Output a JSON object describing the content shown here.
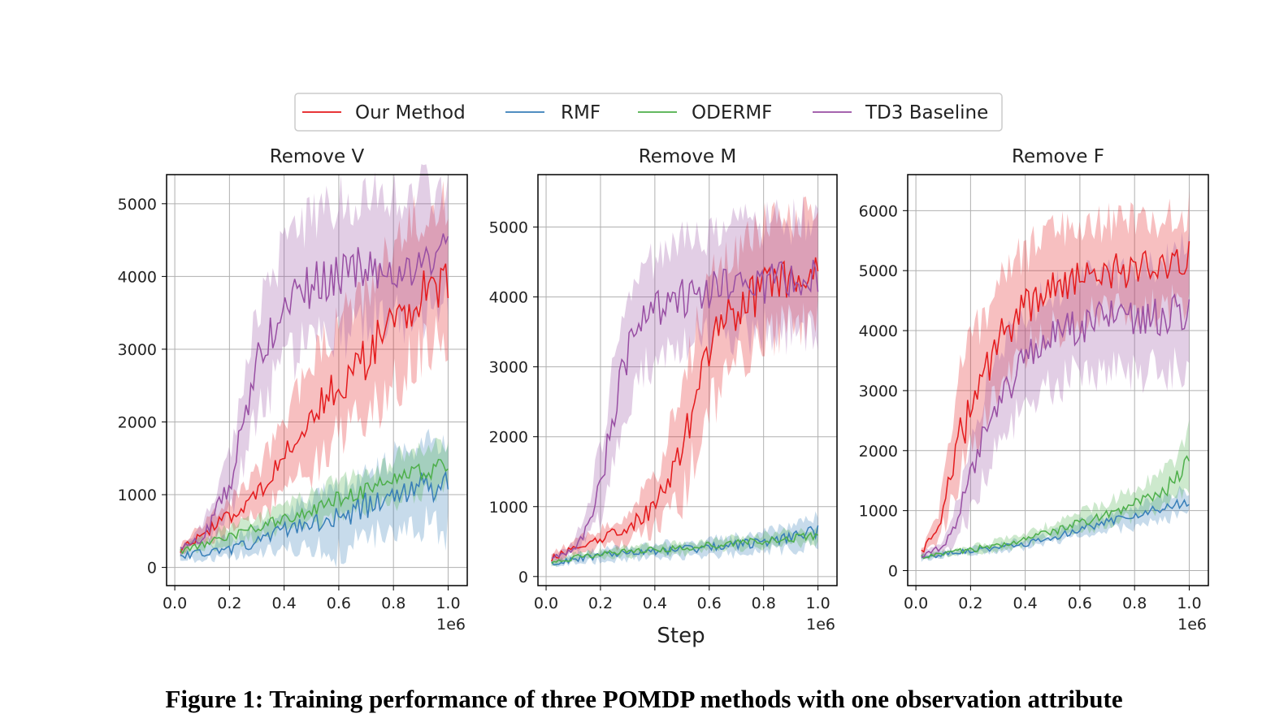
{
  "legend": [
    {
      "label": "Our Method",
      "color": "#e41a1c"
    },
    {
      "label": "RMF",
      "color": "#377eb8"
    },
    {
      "label": "ODERMF",
      "color": "#4daf4a"
    },
    {
      "label": "TD3 Baseline",
      "color": "#984ea3"
    }
  ],
  "shared_xlabel": "Step",
  "x_offset_label": "1e6",
  "caption": "Figure 1: Training performance of three POMDP methods with one observation attribute",
  "chart_data": [
    {
      "type": "line",
      "title": "Remove V",
      "xlim": [
        0.0,
        1.0
      ],
      "ylim": [
        -250,
        5400
      ],
      "xticks": [
        "0.0",
        "0.2",
        "0.4",
        "0.6",
        "0.8",
        "1.0"
      ],
      "yticks": [
        0,
        1000,
        2000,
        3000,
        4000,
        5000
      ],
      "grid": true,
      "series": [
        {
          "name": "Our Method",
          "color": "#e41a1c",
          "x": [
            0.02,
            0.1,
            0.2,
            0.3,
            0.4,
            0.5,
            0.6,
            0.7,
            0.8,
            0.9,
            1.0
          ],
          "y": [
            250,
            450,
            700,
            1000,
            1500,
            2100,
            2500,
            2900,
            3300,
            3800,
            4000
          ],
          "lo": [
            200,
            350,
            500,
            700,
            1000,
            1400,
            1800,
            2100,
            2500,
            3000,
            3200
          ],
          "hi": [
            320,
            600,
            900,
            1300,
            2000,
            2800,
            3300,
            3800,
            4300,
            4900,
            5100
          ]
        },
        {
          "name": "RMF",
          "color": "#377eb8",
          "x": [
            0.02,
            0.1,
            0.2,
            0.3,
            0.4,
            0.5,
            0.6,
            0.7,
            0.8,
            0.9,
            1.0
          ],
          "y": [
            150,
            200,
            250,
            350,
            500,
            600,
            700,
            850,
            1000,
            1100,
            1150
          ],
          "lo": [
            100,
            120,
            150,
            200,
            250,
            300,
            200,
            400,
            500,
            600,
            500
          ],
          "hi": [
            200,
            300,
            400,
            550,
            750,
            900,
            1100,
            1300,
            1500,
            1700,
            1800
          ]
        },
        {
          "name": "ODERMF",
          "color": "#4daf4a",
          "x": [
            0.02,
            0.1,
            0.2,
            0.3,
            0.4,
            0.5,
            0.6,
            0.7,
            0.8,
            0.9,
            1.0
          ],
          "y": [
            220,
            320,
            420,
            550,
            650,
            800,
            950,
            1050,
            1200,
            1300,
            1400
          ],
          "lo": [
            170,
            250,
            320,
            420,
            500,
            600,
            700,
            800,
            900,
            1000,
            1100
          ],
          "hi": [
            270,
            400,
            550,
            700,
            850,
            1000,
            1200,
            1300,
            1500,
            1600,
            1700
          ]
        },
        {
          "name": "TD3 Baseline",
          "color": "#984ea3",
          "x": [
            0.02,
            0.1,
            0.2,
            0.25,
            0.3,
            0.4,
            0.5,
            0.6,
            0.7,
            0.8,
            0.9,
            1.0
          ],
          "y": [
            250,
            400,
            1100,
            2000,
            2800,
            3600,
            3900,
            4000,
            4100,
            4150,
            4200,
            4300
          ],
          "lo": [
            200,
            300,
            700,
            1400,
            2100,
            2800,
            3100,
            3200,
            3400,
            3400,
            3500,
            3600
          ],
          "hi": [
            300,
            550,
            1500,
            2600,
            3500,
            4400,
            4800,
            5000,
            5100,
            5100,
            5200,
            5200
          ]
        }
      ]
    },
    {
      "type": "line",
      "title": "Remove M",
      "xlim": [
        0.0,
        1.0
      ],
      "ylim": [
        -130,
        5750
      ],
      "xticks": [
        "0.0",
        "0.2",
        "0.4",
        "0.6",
        "0.8",
        "1.0"
      ],
      "yticks": [
        0,
        1000,
        2000,
        3000,
        4000,
        5000
      ],
      "grid": true,
      "series": [
        {
          "name": "Our Method",
          "color": "#e41a1c",
          "x": [
            0.02,
            0.1,
            0.2,
            0.3,
            0.4,
            0.5,
            0.55,
            0.6,
            0.7,
            0.8,
            0.9,
            1.0
          ],
          "y": [
            250,
            400,
            550,
            700,
            1000,
            1800,
            2600,
            3300,
            3800,
            4100,
            4300,
            4400
          ],
          "lo": [
            200,
            320,
            420,
            500,
            700,
            1100,
            1700,
            2400,
            3000,
            3400,
            3600,
            3700
          ],
          "hi": [
            320,
            480,
            700,
            900,
            1400,
            2600,
            3500,
            4200,
            4700,
            5000,
            5100,
            5200
          ]
        },
        {
          "name": "RMF",
          "color": "#377eb8",
          "x": [
            0.02,
            0.1,
            0.2,
            0.3,
            0.4,
            0.5,
            0.6,
            0.7,
            0.8,
            0.9,
            1.0
          ],
          "y": [
            180,
            250,
            300,
            330,
            360,
            390,
            420,
            450,
            500,
            550,
            650
          ],
          "lo": [
            150,
            200,
            230,
            250,
            270,
            290,
            310,
            330,
            360,
            390,
            450
          ],
          "hi": [
            220,
            300,
            370,
            410,
            450,
            490,
            530,
            570,
            630,
            700,
            850
          ]
        },
        {
          "name": "ODERMF",
          "color": "#4daf4a",
          "x": [
            0.02,
            0.1,
            0.2,
            0.3,
            0.4,
            0.5,
            0.6,
            0.7,
            0.8,
            0.9,
            1.0
          ],
          "y": [
            200,
            270,
            320,
            360,
            380,
            410,
            440,
            470,
            510,
            550,
            580
          ],
          "lo": [
            170,
            230,
            270,
            300,
            320,
            340,
            360,
            390,
            420,
            450,
            480
          ],
          "hi": [
            230,
            310,
            370,
            420,
            440,
            480,
            520,
            550,
            600,
            650,
            680
          ]
        },
        {
          "name": "TD3 Baseline",
          "color": "#984ea3",
          "x": [
            0.02,
            0.1,
            0.15,
            0.2,
            0.25,
            0.3,
            0.35,
            0.4,
            0.5,
            0.6,
            0.7,
            0.8,
            0.9,
            1.0
          ],
          "y": [
            250,
            400,
            700,
            1300,
            2400,
            3200,
            3600,
            3800,
            4000,
            4100,
            4150,
            4200,
            4200,
            4300
          ],
          "lo": [
            200,
            330,
            500,
            900,
            1700,
            2500,
            2900,
            3100,
            3300,
            3500,
            3500,
            3500,
            3500,
            3600
          ],
          "hi": [
            300,
            480,
            1000,
            1800,
            3100,
            3900,
            4300,
            4500,
            4800,
            4900,
            5000,
            5000,
            5100,
            5200
          ]
        }
      ]
    },
    {
      "type": "line",
      "title": "Remove F",
      "xlim": [
        0.0,
        1.0
      ],
      "ylim": [
        -250,
        6600
      ],
      "xticks": [
        "0.0",
        "0.2",
        "0.4",
        "0.6",
        "0.8",
        "1.0"
      ],
      "yticks": [
        0,
        1000,
        2000,
        3000,
        4000,
        5000,
        6000
      ],
      "grid": true,
      "series": [
        {
          "name": "Our Method",
          "color": "#e41a1c",
          "x": [
            0.02,
            0.08,
            0.12,
            0.16,
            0.2,
            0.25,
            0.3,
            0.35,
            0.4,
            0.5,
            0.6,
            0.7,
            0.8,
            0.9,
            1.0
          ],
          "y": [
            300,
            700,
            1400,
            2200,
            2700,
            3300,
            3800,
            4100,
            4400,
            4700,
            4900,
            5000,
            5000,
            5100,
            5200
          ],
          "lo": [
            250,
            500,
            900,
            1500,
            2000,
            2600,
            3100,
            3400,
            3700,
            4000,
            4200,
            4300,
            4300,
            4400,
            4500
          ],
          "hi": [
            350,
            900,
            2200,
            3200,
            3800,
            4300,
            4800,
            5100,
            5300,
            5600,
            5700,
            5800,
            5800,
            5900,
            6000
          ]
        },
        {
          "name": "RMF",
          "color": "#377eb8",
          "x": [
            0.02,
            0.1,
            0.2,
            0.3,
            0.4,
            0.5,
            0.6,
            0.7,
            0.8,
            0.9,
            1.0
          ],
          "y": [
            220,
            270,
            330,
            380,
            450,
            550,
            700,
            800,
            900,
            1050,
            1150
          ],
          "lo": [
            180,
            230,
            280,
            320,
            380,
            460,
            580,
            660,
            740,
            860,
            950
          ],
          "hi": [
            260,
            310,
            380,
            440,
            520,
            640,
            820,
            940,
            1060,
            1240,
            1350
          ]
        },
        {
          "name": "ODERMF",
          "color": "#4daf4a",
          "x": [
            0.02,
            0.1,
            0.2,
            0.3,
            0.4,
            0.5,
            0.6,
            0.7,
            0.8,
            0.9,
            0.95,
            1.0
          ],
          "y": [
            230,
            280,
            350,
            420,
            520,
            650,
            800,
            950,
            1100,
            1300,
            1500,
            1800
          ],
          "lo": [
            190,
            240,
            290,
            350,
            430,
            540,
            660,
            780,
            900,
            1050,
            1200,
            1400
          ],
          "hi": [
            270,
            320,
            410,
            500,
            620,
            780,
            960,
            1150,
            1350,
            1600,
            1900,
            2300
          ]
        },
        {
          "name": "TD3 Baseline",
          "color": "#984ea3",
          "x": [
            0.02,
            0.1,
            0.15,
            0.2,
            0.25,
            0.3,
            0.4,
            0.5,
            0.6,
            0.7,
            0.8,
            0.9,
            1.0
          ],
          "y": [
            250,
            400,
            800,
            1600,
            2300,
            2800,
            3500,
            3900,
            4100,
            4200,
            4200,
            4200,
            4400
          ],
          "lo": [
            200,
            330,
            500,
            1000,
            1600,
            2100,
            2800,
            3100,
            3300,
            3300,
            3300,
            3300,
            3500
          ],
          "hi": [
            300,
            480,
            1100,
            2200,
            3000,
            3600,
            4300,
            4700,
            4900,
            5000,
            5000,
            5100,
            5300
          ]
        }
      ]
    }
  ]
}
